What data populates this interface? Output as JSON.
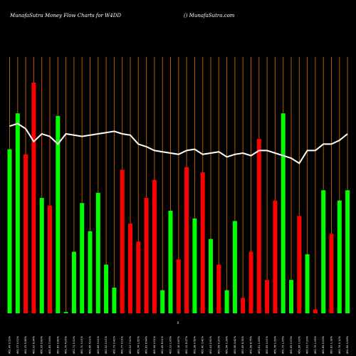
{
  "chart_data": {
    "type": "bar",
    "title": "MunafaSutra  Money Flow  Charts for W4DD",
    "subtitle": "() MunafaSutra.com",
    "zero_label": "0",
    "ylim": [
      0,
      100
    ],
    "grid": true,
    "categories": [
      "461.49 0.53%",
      "461.37 0.02%",
      "461.33 5.58%",
      "461.92 6.94%",
      "461.95 9.89%",
      "461.65 7.06%",
      "461.89 2.89%",
      "461.79 4.05%",
      "461.71 0.02%",
      "461.70 0.01%",
      "461.66 5.01%",
      "461.66 0.01%",
      "461.52 0.01%",
      "461.73 0.42%",
      "461.77 0.01%",
      "461.92 7.00%",
      "461.74 1.62%",
      "461.62 6.64%",
      "461.54 0.01%",
      "461.45 8.01%",
      "461.33 1.06%",
      "461.18 0.87%",
      "461.12 6.27%",
      "461.38 0.59%",
      "461.40 3.42%",
      "461.43 2.62%",
      "461.58 0.20%",
      "461.54 1.28%",
      "461.58 4.42%",
      "461.49 6.34%",
      "461.58 8.75%",
      "461.61 1.08%",
      "461.65 0.01%",
      "461.78 1.29%",
      "461.72 1.06%",
      "461.69 0.03%",
      "461.58 1.03%",
      "461.91 7.29%",
      "461.79 1.05%",
      "461.85 0.03%",
      "461.83 1.18%",
      "461.74 0.10%",
      "461.64 0.08%"
    ],
    "series": [
      {
        "colors": [
          "green",
          "green",
          "red",
          "red",
          "green",
          "red",
          "green",
          "green",
          "green",
          "green",
          "green",
          "green",
          "green",
          "green",
          "red",
          "red",
          "red",
          "red",
          "red",
          "green",
          "green",
          "red",
          "red",
          "green",
          "red",
          "green",
          "red",
          "green",
          "green",
          "red",
          "red",
          "red",
          "red",
          "red",
          "green",
          "green",
          "red",
          "green",
          "red",
          "green",
          "red",
          "green",
          "green"
        ],
        "values": [
          64,
          78,
          62,
          90,
          45,
          42,
          77,
          0.5,
          24,
          43,
          32,
          47,
          19,
          10,
          56,
          35,
          28,
          45,
          52,
          9,
          40,
          21,
          57,
          37,
          55,
          29,
          19,
          9,
          36,
          6,
          24,
          68,
          13,
          44,
          78,
          13,
          38,
          23,
          1.5,
          48,
          31,
          44,
          48
        ]
      },
      {
        "type": "line",
        "color": "#ffffff",
        "values": [
          73,
          74,
          72,
          67,
          70,
          69,
          66,
          70,
          69.5,
          69,
          69.5,
          70,
          70.5,
          71,
          70,
          69.5,
          66,
          65,
          63.5,
          63,
          62.5,
          62,
          63.5,
          64,
          62,
          62.5,
          63,
          61,
          62,
          62.5,
          61.5,
          63.5,
          63.5,
          62.5,
          61.5,
          60.5,
          58.5,
          63.5,
          63.5,
          66,
          66,
          67.5,
          70
        ]
      }
    ]
  }
}
